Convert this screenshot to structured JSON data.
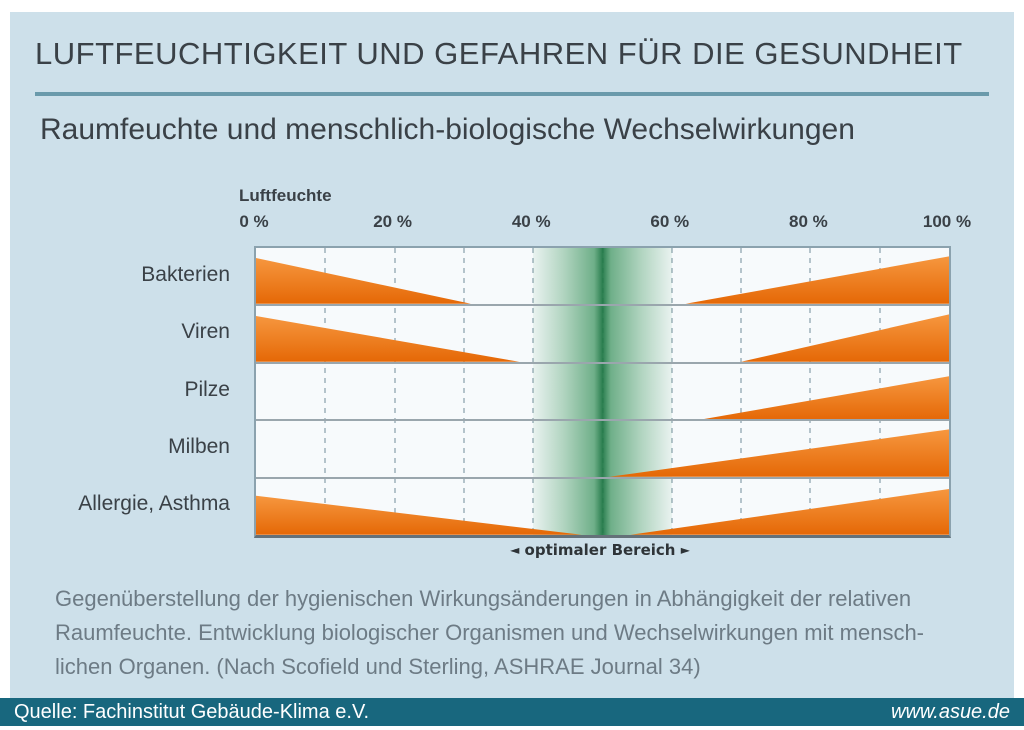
{
  "header": {
    "title": "LUFTFEUCHTIGKEIT UND GEFAHREN FÜR DIE GESUNDHEIT",
    "subtitle": "Raumfeuchte und menschlich-biologische Wechselwirkungen"
  },
  "chart_data": {
    "type": "area",
    "title": "Raumfeuchte und menschlich-biologische Wechselwirkungen",
    "xlabel": "Luftfeuchte",
    "xlim": [
      0,
      100
    ],
    "x_ticks": [
      "0 %",
      "20 %",
      "40 %",
      "60 %",
      "80 %",
      "100 %"
    ],
    "x_tick_pcts": [
      0,
      20,
      40,
      60,
      80,
      100
    ],
    "minor_gridline_pcts": [
      10,
      20,
      30,
      40,
      50,
      60,
      70,
      80,
      90
    ],
    "grid": "dashed-vertical",
    "optimal_band": {
      "start_pct": 40,
      "end_pct": 60,
      "label": "optimaler Bereich",
      "left_marker": "◄",
      "right_marker": "►"
    },
    "rows": [
      {
        "label": "Bakterien",
        "left_wedge": {
          "start_pct": 0,
          "end_pct": 31,
          "max_height_frac": 0.82
        },
        "right_wedge": {
          "start_pct": 62,
          "end_pct": 100,
          "max_height_frac": 0.85
        }
      },
      {
        "label": "Viren",
        "left_wedge": {
          "start_pct": 0,
          "end_pct": 38,
          "max_height_frac": 0.82
        },
        "right_wedge": {
          "start_pct": 70,
          "end_pct": 100,
          "max_height_frac": 0.85
        }
      },
      {
        "label": "Pilze",
        "left_wedge": null,
        "right_wedge": {
          "start_pct": 64,
          "end_pct": 100,
          "max_height_frac": 0.78
        }
      },
      {
        "label": "Milben",
        "left_wedge": null,
        "right_wedge": {
          "start_pct": 51,
          "end_pct": 100,
          "max_height_frac": 0.85
        }
      },
      {
        "label": "Allergie, Asthma",
        "left_wedge": {
          "start_pct": 0,
          "end_pct": 47,
          "max_height_frac": 0.7
        },
        "right_wedge": {
          "start_pct": 54,
          "end_pct": 100,
          "max_height_frac": 0.82
        }
      }
    ],
    "colors": {
      "wedge_orange_light": "#f6973f",
      "wedge_orange_dark": "#e56806",
      "optimal_green": "#3f9565",
      "panel_blue": "#cde0ea",
      "footer_teal": "#18677e"
    }
  },
  "caption": {
    "lines": [
      "Gegenüberstellung der hygienischen Wirkungsänderungen in Abhängigkeit der relativen",
      "Raumfeuchte. Entwicklung biologischer Organismen und Wechselwirkungen mit mensch-",
      "lichen Organen. (Nach Scofield und Sterling, ASHRAE Journal 34)"
    ]
  },
  "footer": {
    "source": "Quelle: Fachinstitut Gebäude-Klima e.V.",
    "website": "www.asue.de"
  }
}
